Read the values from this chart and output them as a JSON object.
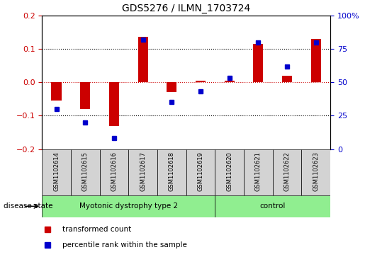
{
  "title": "GDS5276 / ILMN_1703724",
  "samples": [
    "GSM1102614",
    "GSM1102615",
    "GSM1102616",
    "GSM1102617",
    "GSM1102618",
    "GSM1102619",
    "GSM1102620",
    "GSM1102621",
    "GSM1102622",
    "GSM1102623"
  ],
  "transformed_count": [
    -0.055,
    -0.08,
    -0.13,
    0.135,
    -0.03,
    0.005,
    0.005,
    0.115,
    0.02,
    0.13
  ],
  "percentile_rank": [
    30,
    20,
    8,
    82,
    35,
    43,
    53,
    80,
    62,
    80
  ],
  "disease_groups": [
    {
      "label": "Myotonic dystrophy type 2",
      "start": 0,
      "end": 6,
      "color": "#90ee90"
    },
    {
      "label": "control",
      "start": 6,
      "end": 10,
      "color": "#90ee90"
    }
  ],
  "ylim_left": [
    -0.2,
    0.2
  ],
  "ylim_right": [
    0,
    100
  ],
  "yticks_left": [
    -0.2,
    -0.1,
    0.0,
    0.1,
    0.2
  ],
  "yticks_right": [
    0,
    25,
    50,
    75,
    100
  ],
  "bar_color": "#cc0000",
  "dot_color": "#0000cc",
  "zero_line_color": "#cc0000",
  "grid_color": "#000000",
  "background_color": "#ffffff",
  "label_bg_color": "#d3d3d3",
  "legend_bar_label": "transformed count",
  "legend_dot_label": "percentile rank within the sample"
}
